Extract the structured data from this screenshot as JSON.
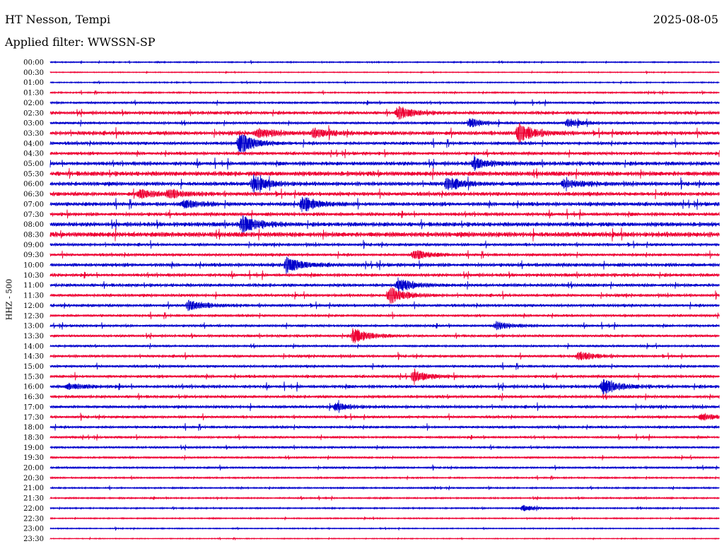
{
  "header": {
    "station": "HT Nesson, Tempi",
    "date": "2025-08-05",
    "filter_text": "Applied filter: WWSSN-SP"
  },
  "chart_data": {
    "type": "helicorder",
    "ylabel": "HHZ - 500",
    "row_labels": [
      "00:00",
      "00:30",
      "01:00",
      "01:30",
      "02:00",
      "02:30",
      "03:00",
      "03:30",
      "04:00",
      "04:30",
      "05:00",
      "05:30",
      "06:00",
      "06:30",
      "07:00",
      "07:30",
      "08:00",
      "08:30",
      "09:00",
      "09:30",
      "10:00",
      "10:30",
      "11:00",
      "11:30",
      "12:00",
      "12:30",
      "13:00",
      "13:30",
      "14:00",
      "14:30",
      "15:00",
      "15:30",
      "16:00",
      "16:30",
      "17:00",
      "17:30",
      "18:00",
      "18:30",
      "19:00",
      "19:30",
      "20:00",
      "20:30",
      "21:00",
      "21:30",
      "22:00",
      "22:30",
      "23:00",
      "23:30"
    ],
    "row_minutes": 30,
    "row_colors": [
      "#0000cc",
      "#ee0033"
    ],
    "noise_levels": [
      0.8,
      0.6,
      0.8,
      1,
      1.4,
      2,
      1.6,
      2.4,
      2,
      2,
      2.4,
      2.8,
      2.4,
      2.4,
      2.4,
      2.2,
      2.6,
      3,
      1.8,
      1.8,
      2.2,
      2,
      2,
      1.8,
      1.8,
      1.6,
      1.6,
      1.6,
      1.4,
      1.6,
      1.6,
      1.8,
      2,
      1.8,
      1.8,
      1.6,
      1.6,
      1.4,
      1.4,
      1.2,
      1.2,
      1,
      1,
      1,
      0.9,
      0.8,
      0.7,
      0.6
    ],
    "events": [
      {
        "row": 5,
        "minute": 15.6,
        "amp": 9
      },
      {
        "row": 7,
        "minute": 21.0,
        "amp": 13
      },
      {
        "row": 7,
        "minute": 11.8,
        "amp": 7
      },
      {
        "row": 7,
        "minute": 9.3,
        "amp": 6
      },
      {
        "row": 8,
        "minute": 8.5,
        "amp": 14
      },
      {
        "row": 6,
        "minute": 18.8,
        "amp": 6
      },
      {
        "row": 6,
        "minute": 23.2,
        "amp": 5
      },
      {
        "row": 10,
        "minute": 19.0,
        "amp": 7
      },
      {
        "row": 12,
        "minute": 9.1,
        "amp": 11
      },
      {
        "row": 12,
        "minute": 17.8,
        "amp": 9
      },
      {
        "row": 12,
        "minute": 23.0,
        "amp": 6
      },
      {
        "row": 13,
        "minute": 4.0,
        "amp": 6
      },
      {
        "row": 13,
        "minute": 5.3,
        "amp": 5
      },
      {
        "row": 14,
        "minute": 11.3,
        "amp": 11
      },
      {
        "row": 14,
        "minute": 6.0,
        "amp": 5
      },
      {
        "row": 16,
        "minute": 8.6,
        "amp": 12
      },
      {
        "row": 19,
        "minute": 16.3,
        "amp": 7
      },
      {
        "row": 20,
        "minute": 10.6,
        "amp": 11
      },
      {
        "row": 22,
        "minute": 15.6,
        "amp": 9
      },
      {
        "row": 23,
        "minute": 15.2,
        "amp": 12
      },
      {
        "row": 24,
        "minute": 6.2,
        "amp": 7
      },
      {
        "row": 26,
        "minute": 20.0,
        "amp": 5
      },
      {
        "row": 27,
        "minute": 13.6,
        "amp": 11
      },
      {
        "row": 29,
        "minute": 23.7,
        "amp": 6
      },
      {
        "row": 31,
        "minute": 16.3,
        "amp": 7
      },
      {
        "row": 32,
        "minute": 24.8,
        "amp": 10
      },
      {
        "row": 32,
        "minute": 0.8,
        "amp": 4
      },
      {
        "row": 34,
        "minute": 12.8,
        "amp": 5
      },
      {
        "row": 35,
        "minute": 29.2,
        "amp": 5
      },
      {
        "row": 44,
        "minute": 21.2,
        "amp": 4
      }
    ]
  }
}
